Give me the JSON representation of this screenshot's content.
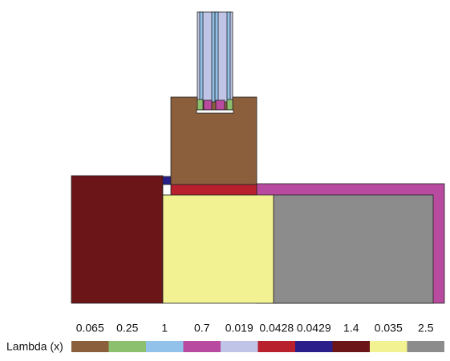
{
  "legend": {
    "title": "Lambda (x)",
    "items": [
      {
        "label": "0.065",
        "color": "#8b5e3c"
      },
      {
        "label": "0.25",
        "color": "#8cc06e"
      },
      {
        "label": "1",
        "color": "#92c1e9"
      },
      {
        "label": "0.7",
        "color": "#b84a9f"
      },
      {
        "label": "0.019",
        "color": "#c0c4e6"
      },
      {
        "label": "0.0428",
        "color": "#b8202e"
      },
      {
        "label": "0.0429",
        "color": "#2a1f8a"
      },
      {
        "label": "1.4",
        "color": "#6b1519"
      },
      {
        "label": "0.035",
        "color": "#f3f293"
      },
      {
        "label": "2.5",
        "color": "#8c8c8c"
      }
    ]
  }
}
